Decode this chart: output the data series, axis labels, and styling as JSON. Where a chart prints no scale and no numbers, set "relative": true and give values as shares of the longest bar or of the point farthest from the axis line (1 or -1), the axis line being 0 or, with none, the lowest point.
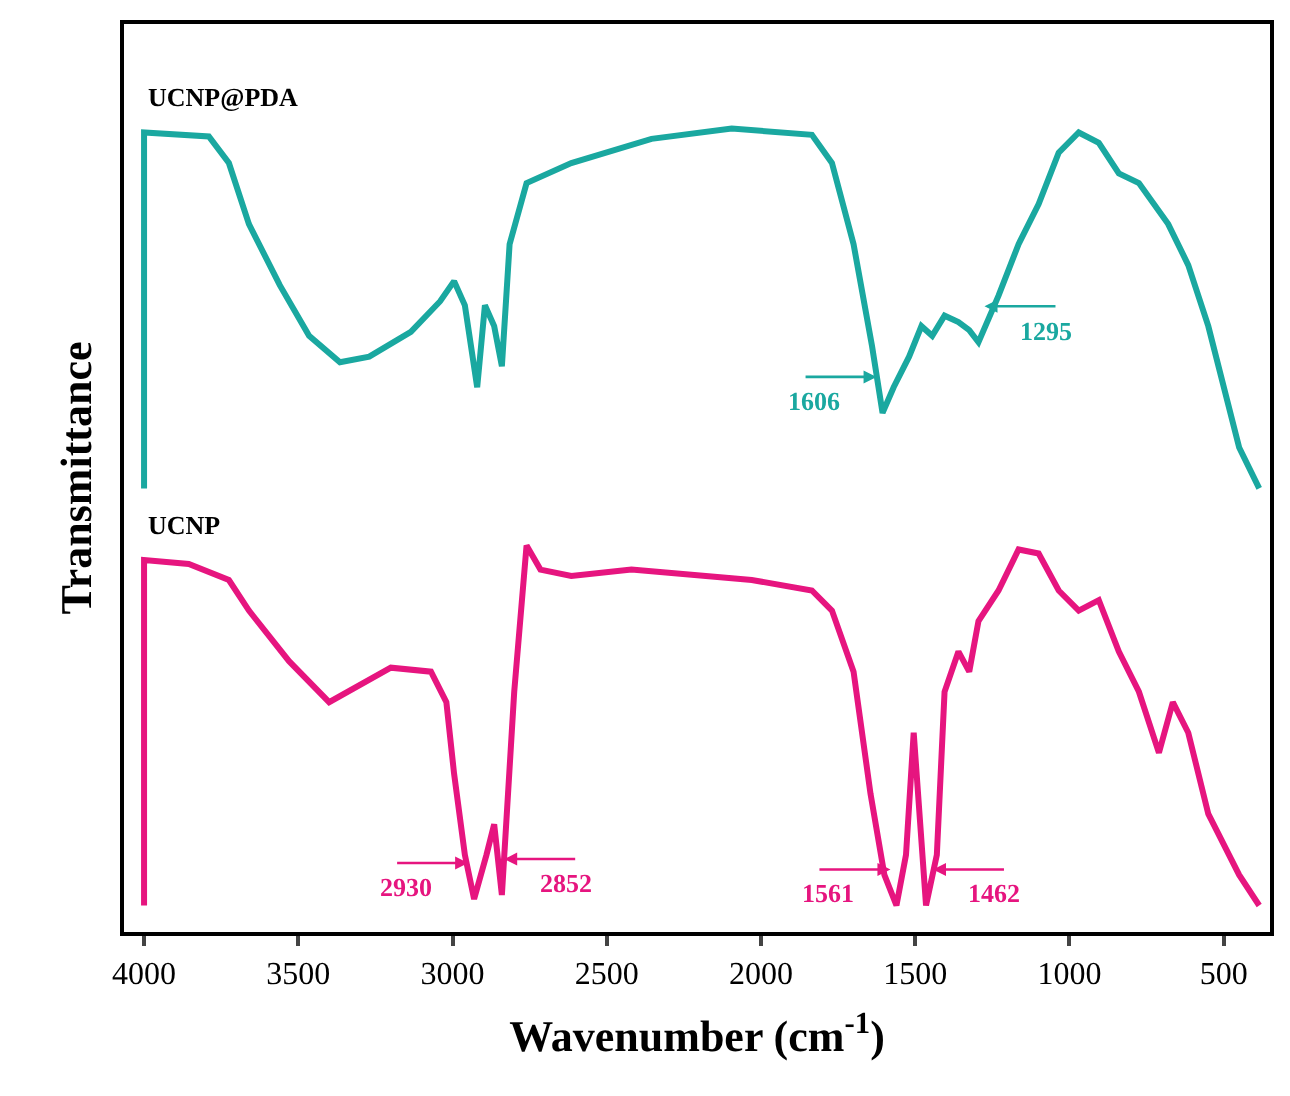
{
  "chart_data": {
    "type": "line",
    "relative": true,
    "xlabel": "Wavenumber (cm$^{-1}$)",
    "ylabel": "Transmittance",
    "xlim": [
      4065,
      350
    ],
    "xticks": [
      4000,
      3500,
      3000,
      2500,
      2000,
      1500,
      1000,
      500
    ],
    "tick_labels": "x",
    "legend": false,
    "marker": "none",
    "line_style": "solid",
    "series": [
      {
        "name": "UCNP@PDA",
        "color": "#1aa8a0",
        "x": [
          4000,
          4000,
          3790,
          3725,
          3660,
          3560,
          3465,
          3365,
          3270,
          3135,
          3040,
          2995,
          2960,
          2920,
          2895,
          2865,
          2840,
          2815,
          2760,
          2615,
          2355,
          2095,
          1835,
          1770,
          1700,
          1640,
          1606,
          1570,
          1520,
          1480,
          1445,
          1405,
          1360,
          1325,
          1295,
          1230,
          1165,
          1100,
          1035,
          970,
          905,
          840,
          775,
          680,
          615,
          550,
          450,
          385
        ],
        "values": [
          0.552,
          0.995,
          0.99,
          0.957,
          0.881,
          0.805,
          0.742,
          0.709,
          0.716,
          0.747,
          0.785,
          0.81,
          0.78,
          0.678,
          0.78,
          0.754,
          0.704,
          0.856,
          0.932,
          0.957,
          0.987,
          1.0,
          0.992,
          0.957,
          0.856,
          0.729,
          0.646,
          0.678,
          0.716,
          0.754,
          0.742,
          0.767,
          0.759,
          0.749,
          0.734,
          0.792,
          0.856,
          0.906,
          0.97,
          0.995,
          0.982,
          0.944,
          0.932,
          0.881,
          0.83,
          0.754,
          0.603,
          0.552
        ]
      },
      {
        "name": "UCNP",
        "color": "#e6157f",
        "x": [
          4000,
          4000,
          3855,
          3725,
          3660,
          3530,
          3400,
          3200,
          3070,
          3020,
          2995,
          2960,
          2930,
          2890,
          2865,
          2840,
          2800,
          2760,
          2715,
          2615,
          2420,
          2030,
          1835,
          1770,
          1700,
          1645,
          1600,
          1561,
          1530,
          1505,
          1465,
          1430,
          1405,
          1360,
          1325,
          1295,
          1230,
          1165,
          1100,
          1035,
          970,
          905,
          840,
          775,
          710,
          665,
          615,
          550,
          450,
          385
        ],
        "values": [
          0.033,
          0.463,
          0.458,
          0.438,
          0.4,
          0.337,
          0.286,
          0.329,
          0.324,
          0.286,
          0.197,
          0.096,
          0.041,
          0.096,
          0.134,
          0.046,
          0.299,
          0.481,
          0.451,
          0.443,
          0.451,
          0.438,
          0.425,
          0.4,
          0.324,
          0.172,
          0.071,
          0.033,
          0.096,
          0.248,
          0.033,
          0.096,
          0.299,
          0.349,
          0.324,
          0.387,
          0.425,
          0.476,
          0.471,
          0.425,
          0.4,
          0.413,
          0.349,
          0.299,
          0.223,
          0.286,
          0.248,
          0.147,
          0.071,
          0.033
        ]
      }
    ],
    "annotations": [
      {
        "text": "1606",
        "x": 1606,
        "y": 0.646
      },
      {
        "text": "1295",
        "x": 1295,
        "y": 0.734
      },
      {
        "text": "2930",
        "x": 2930,
        "y": 0.041
      },
      {
        "text": "2852",
        "x": 2852,
        "y": 0.046
      },
      {
        "text": "1561",
        "x": 1561,
        "y": 0.033
      },
      {
        "text": "1462",
        "x": 1462,
        "y": 0.033
      }
    ]
  }
}
